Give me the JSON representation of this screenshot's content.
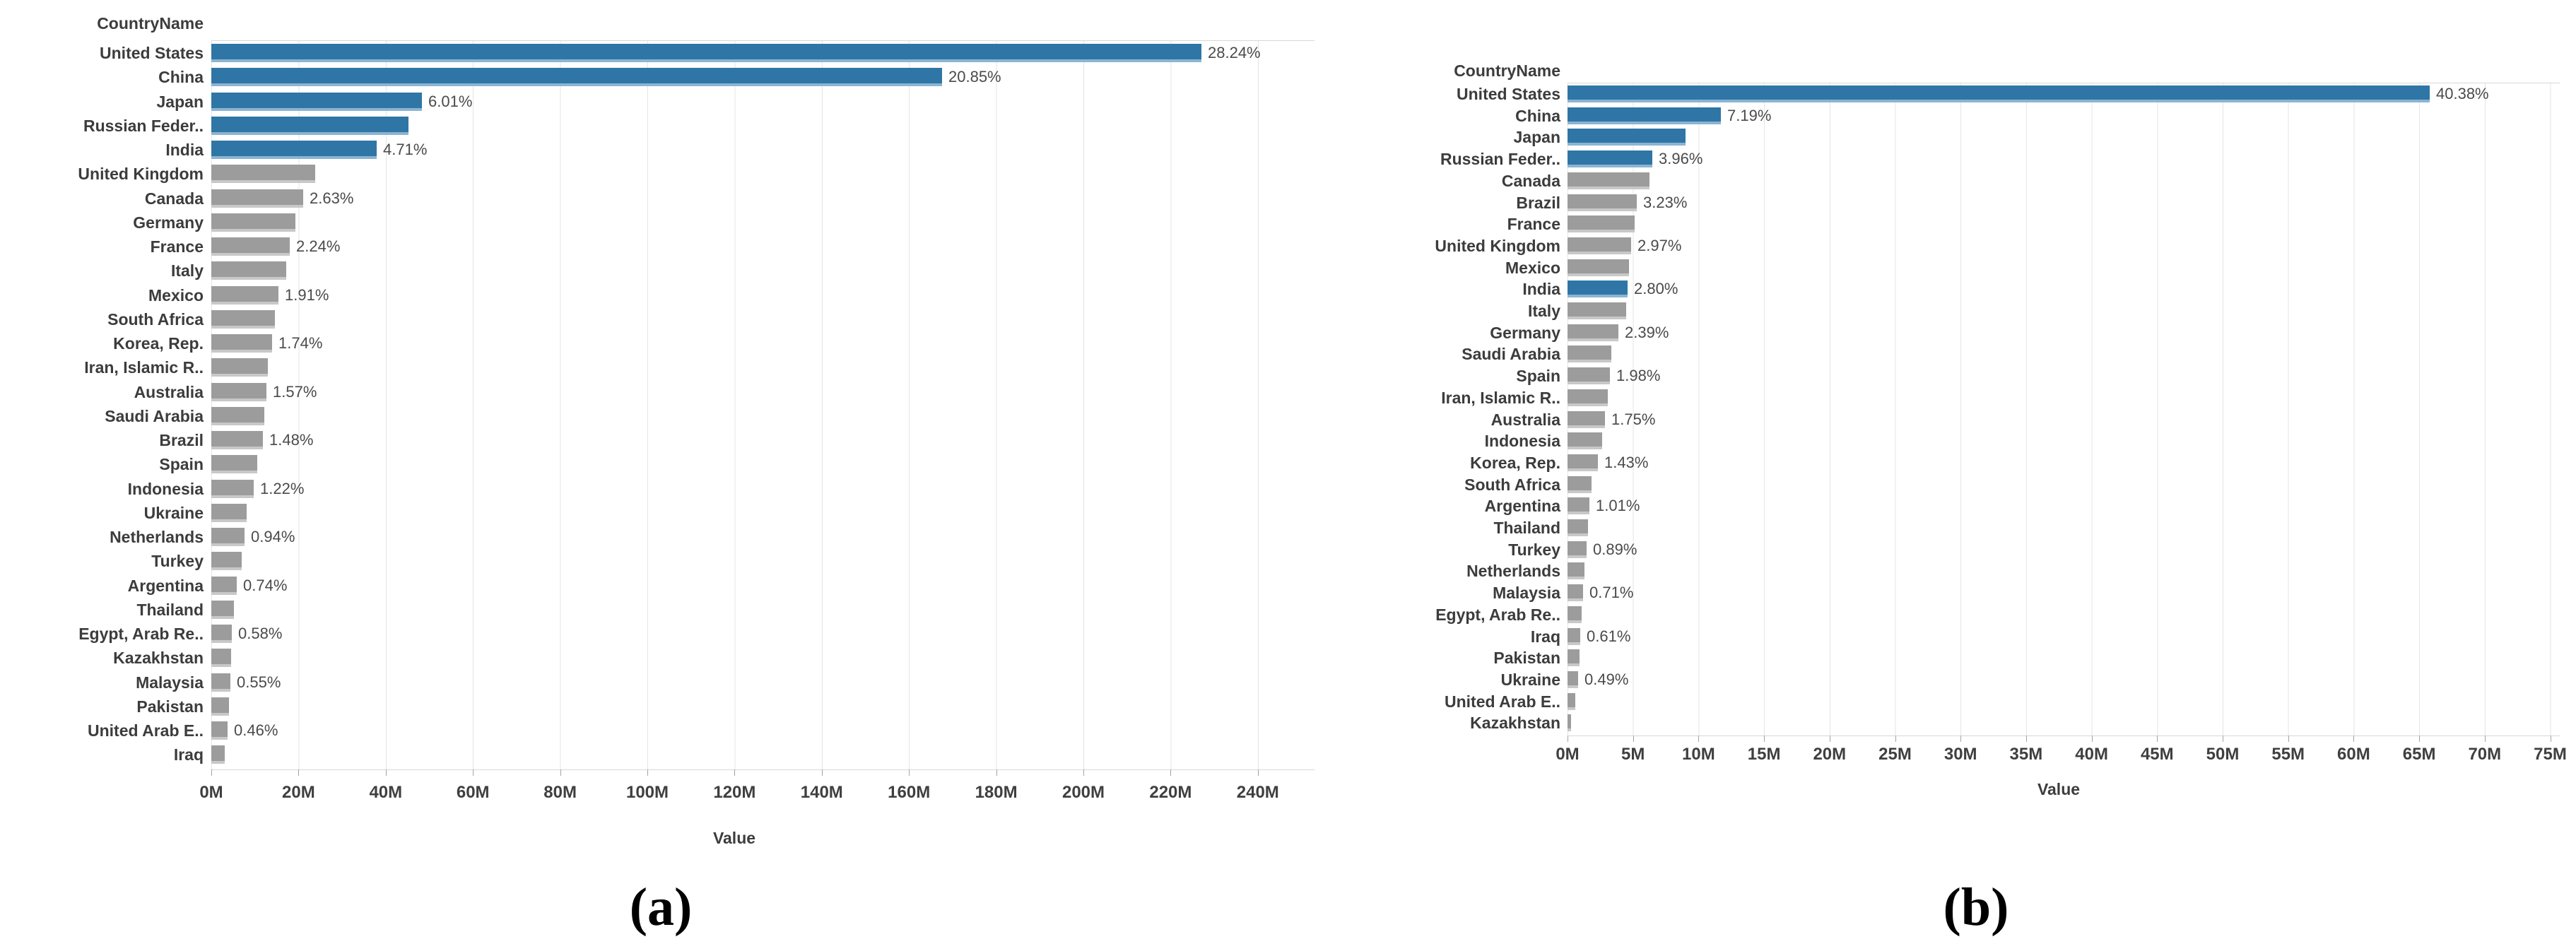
{
  "figure": {
    "captions": {
      "a": "(a)",
      "b": "(b)"
    }
  },
  "chart_data": [
    {
      "panel": "a",
      "type": "bar",
      "orientation": "horizontal",
      "column_header": "CountryName",
      "xlabel": "Value",
      "x_unit": "M",
      "x_tick_step_m": 20,
      "xlim_m": [
        0,
        253
      ],
      "grid": "vertical gridlines at every 20M tick",
      "legend": "none",
      "bar_colors": {
        "highlighted": "#2f76a6",
        "default": "#9c9c9c"
      },
      "x_tick_labels": [
        "0M",
        "20M",
        "40M",
        "60M",
        "80M",
        "100M",
        "120M",
        "140M",
        "160M",
        "180M",
        "200M",
        "220M",
        "240M"
      ],
      "rows": [
        {
          "country": "United States",
          "value_m": 227.1,
          "label": "28.24%",
          "highlighted": true
        },
        {
          "country": "China",
          "value_m": 167.6,
          "label": "20.85%",
          "highlighted": true
        },
        {
          "country": "Japan",
          "value_m": 48.3,
          "label": "6.01%",
          "highlighted": true
        },
        {
          "country": "Russian Feder..",
          "value_m": 45.2,
          "label": null,
          "highlighted": true
        },
        {
          "country": "India",
          "value_m": 37.9,
          "label": "4.71%",
          "highlighted": true
        },
        {
          "country": "United Kingdom",
          "value_m": 23.8,
          "label": null,
          "highlighted": false
        },
        {
          "country": "Canada",
          "value_m": 21.1,
          "label": "2.63%",
          "highlighted": false
        },
        {
          "country": "Germany",
          "value_m": 19.3,
          "label": null,
          "highlighted": false
        },
        {
          "country": "France",
          "value_m": 18.0,
          "label": "2.24%",
          "highlighted": false
        },
        {
          "country": "Italy",
          "value_m": 17.2,
          "label": null,
          "highlighted": false
        },
        {
          "country": "Mexico",
          "value_m": 15.4,
          "label": "1.91%",
          "highlighted": false
        },
        {
          "country": "South Africa",
          "value_m": 14.6,
          "label": null,
          "highlighted": false
        },
        {
          "country": "Korea, Rep.",
          "value_m": 14.0,
          "label": "1.74%",
          "highlighted": false
        },
        {
          "country": "Iran, Islamic R..",
          "value_m": 13.0,
          "label": null,
          "highlighted": false
        },
        {
          "country": "Australia",
          "value_m": 12.6,
          "label": "1.57%",
          "highlighted": false
        },
        {
          "country": "Saudi Arabia",
          "value_m": 12.1,
          "label": null,
          "highlighted": false
        },
        {
          "country": "Brazil",
          "value_m": 11.9,
          "label": "1.48%",
          "highlighted": false
        },
        {
          "country": "Spain",
          "value_m": 10.5,
          "label": null,
          "highlighted": false
        },
        {
          "country": "Indonesia",
          "value_m": 9.8,
          "label": "1.22%",
          "highlighted": false
        },
        {
          "country": "Ukraine",
          "value_m": 8.1,
          "label": null,
          "highlighted": false
        },
        {
          "country": "Netherlands",
          "value_m": 7.6,
          "label": "0.94%",
          "highlighted": false
        },
        {
          "country": "Turkey",
          "value_m": 7.0,
          "label": null,
          "highlighted": false
        },
        {
          "country": "Argentina",
          "value_m": 5.9,
          "label": "0.74%",
          "highlighted": false
        },
        {
          "country": "Thailand",
          "value_m": 5.2,
          "label": null,
          "highlighted": false
        },
        {
          "country": "Egypt, Arab Re..",
          "value_m": 4.7,
          "label": "0.58%",
          "highlighted": false
        },
        {
          "country": "Kazakhstan",
          "value_m": 4.55,
          "label": null,
          "highlighted": false
        },
        {
          "country": "Malaysia",
          "value_m": 4.4,
          "label": "0.55%",
          "highlighted": false
        },
        {
          "country": "Pakistan",
          "value_m": 4.05,
          "label": null,
          "highlighted": false
        },
        {
          "country": "United Arab E..",
          "value_m": 3.7,
          "label": "0.46%",
          "highlighted": false
        },
        {
          "country": "Iraq",
          "value_m": 3.1,
          "label": null,
          "highlighted": false
        }
      ]
    },
    {
      "panel": "b",
      "type": "bar",
      "orientation": "horizontal",
      "column_header": "CountryName",
      "xlabel": "Value",
      "x_unit": "M",
      "x_tick_step_m": 5,
      "xlim_m": [
        0,
        75.7
      ],
      "grid": "vertical gridlines at every 5M tick",
      "legend": "none",
      "bar_colors": {
        "highlighted": "#2f76a6",
        "default": "#9c9c9c"
      },
      "x_tick_labels": [
        "0M",
        "5M",
        "10M",
        "15M",
        "20M",
        "25M",
        "30M",
        "35M",
        "40M",
        "45M",
        "50M",
        "55M",
        "60M",
        "65M",
        "70M",
        "75M"
      ],
      "rows": [
        {
          "country": "United States",
          "value_m": 65.8,
          "label": "40.38%",
          "highlighted": true
        },
        {
          "country": "China",
          "value_m": 11.72,
          "label": "7.19%",
          "highlighted": true
        },
        {
          "country": "Japan",
          "value_m": 9.0,
          "label": null,
          "highlighted": true
        },
        {
          "country": "Russian Feder..",
          "value_m": 6.45,
          "label": "3.96%",
          "highlighted": true
        },
        {
          "country": "Canada",
          "value_m": 6.25,
          "label": null,
          "highlighted": false
        },
        {
          "country": "Brazil",
          "value_m": 5.26,
          "label": "3.23%",
          "highlighted": false
        },
        {
          "country": "France",
          "value_m": 5.15,
          "label": null,
          "highlighted": false
        },
        {
          "country": "United Kingdom",
          "value_m": 4.84,
          "label": "2.97%",
          "highlighted": false
        },
        {
          "country": "Mexico",
          "value_m": 4.7,
          "label": null,
          "highlighted": false
        },
        {
          "country": "India",
          "value_m": 4.56,
          "label": "2.80%",
          "highlighted": true
        },
        {
          "country": "Italy",
          "value_m": 4.45,
          "label": null,
          "highlighted": false
        },
        {
          "country": "Germany",
          "value_m": 3.9,
          "label": "2.39%",
          "highlighted": false
        },
        {
          "country": "Saudi Arabia",
          "value_m": 3.35,
          "label": null,
          "highlighted": false
        },
        {
          "country": "Spain",
          "value_m": 3.23,
          "label": "1.98%",
          "highlighted": false
        },
        {
          "country": "Iran, Islamic R..",
          "value_m": 3.1,
          "label": null,
          "highlighted": false
        },
        {
          "country": "Australia",
          "value_m": 2.85,
          "label": "1.75%",
          "highlighted": false
        },
        {
          "country": "Indonesia",
          "value_m": 2.62,
          "label": null,
          "highlighted": false
        },
        {
          "country": "Korea, Rep.",
          "value_m": 2.33,
          "label": "1.43%",
          "highlighted": false
        },
        {
          "country": "South Africa",
          "value_m": 1.85,
          "label": null,
          "highlighted": false
        },
        {
          "country": "Argentina",
          "value_m": 1.65,
          "label": "1.01%",
          "highlighted": false
        },
        {
          "country": "Thailand",
          "value_m": 1.55,
          "label": null,
          "highlighted": false
        },
        {
          "country": "Turkey",
          "value_m": 1.45,
          "label": "0.89%",
          "highlighted": false
        },
        {
          "country": "Netherlands",
          "value_m": 1.27,
          "label": null,
          "highlighted": false
        },
        {
          "country": "Malaysia",
          "value_m": 1.16,
          "label": "0.71%",
          "highlighted": false
        },
        {
          "country": "Egypt, Arab Re..",
          "value_m": 1.06,
          "label": null,
          "highlighted": false
        },
        {
          "country": "Iraq",
          "value_m": 0.99,
          "label": "0.61%",
          "highlighted": false
        },
        {
          "country": "Pakistan",
          "value_m": 0.9,
          "label": null,
          "highlighted": false
        },
        {
          "country": "Ukraine",
          "value_m": 0.8,
          "label": "0.49%",
          "highlighted": false
        },
        {
          "country": "United Arab E..",
          "value_m": 0.62,
          "label": null,
          "highlighted": false
        },
        {
          "country": "Kazakhstan",
          "value_m": 0.28,
          "label": null,
          "highlighted": false
        }
      ]
    }
  ]
}
